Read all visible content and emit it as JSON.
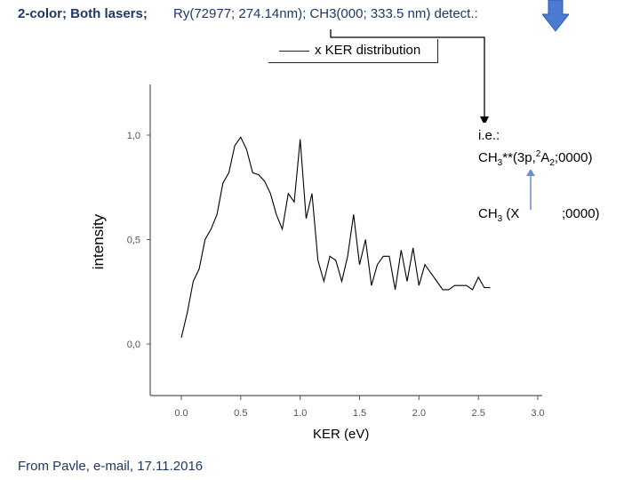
{
  "header": {
    "left": "2-color; Both lasers;",
    "right": "Ry(72977; 274.14nm); CH3(000; 333.5 nm) detect.:"
  },
  "footer": "From Pavle, e-mail, 17.11.2016",
  "annotation": {
    "line1": "i.e.:",
    "line2_parts": [
      "CH",
      "3",
      "**(3p,",
      "2",
      "A",
      "2",
      ";0000)"
    ],
    "line3_parts": [
      "CH",
      "3",
      " (X",
      ";0000)"
    ]
  },
  "colors": {
    "text": "#1f3864",
    "arrow": "#6a8ec8",
    "series": "#000000",
    "down_arrow_fill": "#4a7bd0"
  },
  "icons": [
    "down-arrow-icon",
    "connector-arrow-icon",
    "up-arrow-icon"
  ],
  "chart_data": {
    "type": "line",
    "xlabel": "KER (eV)",
    "ylabel": "intensity",
    "xlim": [
      0.0,
      3.0
    ],
    "ylim": [
      0.0,
      1.0
    ],
    "xticks": [
      "0.0",
      "0.5",
      "1.0",
      "1.5",
      "2.0",
      "2.5",
      "3.0"
    ],
    "yticks": [
      "0,0",
      "0,5",
      "1,0"
    ],
    "series": [
      {
        "name": "x KER distribution",
        "x": [
          0.0,
          0.05,
          0.1,
          0.15,
          0.2,
          0.25,
          0.3,
          0.35,
          0.4,
          0.45,
          0.5,
          0.55,
          0.6,
          0.65,
          0.7,
          0.75,
          0.8,
          0.85,
          0.9,
          0.95,
          1.0,
          1.05,
          1.1,
          1.15,
          1.2,
          1.25,
          1.3,
          1.35,
          1.4,
          1.45,
          1.5,
          1.55,
          1.6,
          1.65,
          1.7,
          1.75,
          1.8,
          1.85,
          1.9,
          1.95,
          2.0,
          2.05,
          2.1,
          2.15,
          2.2,
          2.25,
          2.3,
          2.35,
          2.4,
          2.45,
          2.5,
          2.55,
          2.6
        ],
        "y": [
          0.03,
          0.15,
          0.3,
          0.36,
          0.5,
          0.55,
          0.62,
          0.77,
          0.82,
          0.95,
          0.99,
          0.93,
          0.82,
          0.81,
          0.78,
          0.72,
          0.62,
          0.55,
          0.72,
          0.68,
          0.98,
          0.6,
          0.72,
          0.4,
          0.3,
          0.42,
          0.4,
          0.3,
          0.42,
          0.62,
          0.38,
          0.5,
          0.28,
          0.38,
          0.42,
          0.42,
          0.26,
          0.45,
          0.3,
          0.46,
          0.28,
          0.38,
          0.34,
          0.3,
          0.26,
          0.26,
          0.28,
          0.28,
          0.28,
          0.26,
          0.32,
          0.27,
          0.27
        ]
      }
    ]
  }
}
